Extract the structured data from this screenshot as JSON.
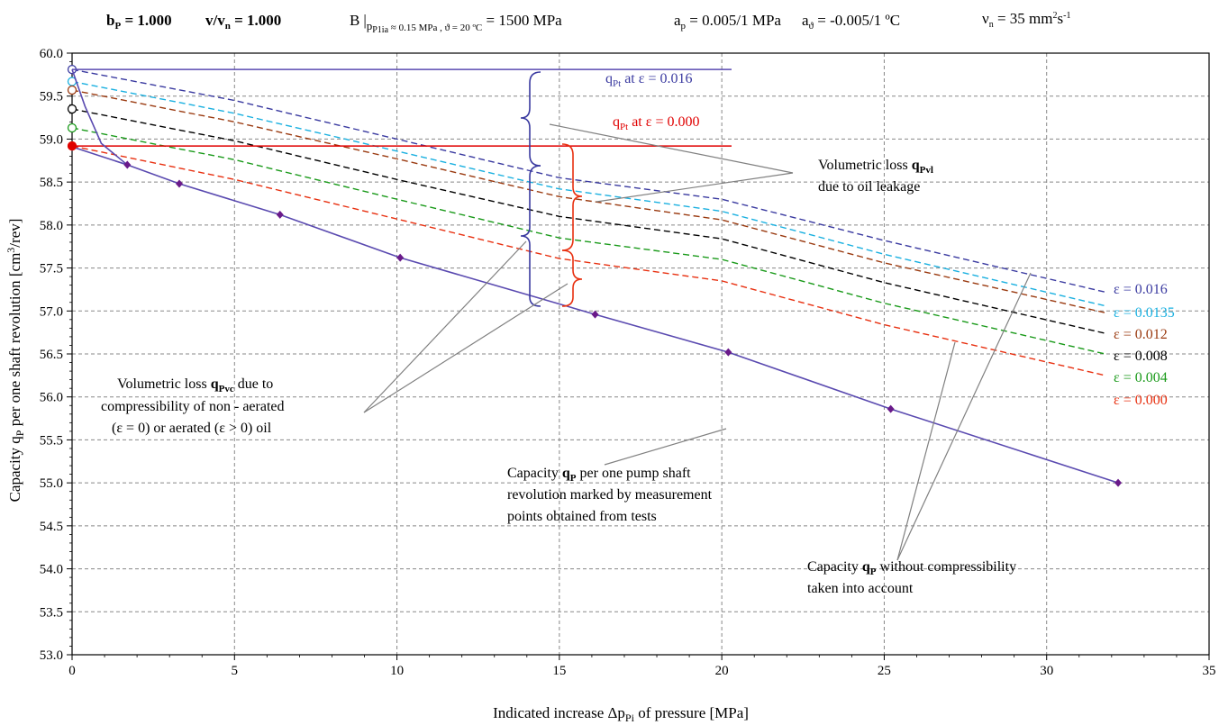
{
  "header": {
    "bp_label": "b",
    "bp_sub": "P",
    "bp_val": " = 1.000",
    "vvn_label": "v/v",
    "vvn_sub": "n",
    "vvn_val": " = 1.000",
    "B_label": "B",
    "B_sub": "p",
    "B_subsub": "P1ia",
    "B_cond": " ≈ 0.15 MPa , ϑ = 20 ºC",
    "B_val": " = 1500 MPa",
    "ap_label": "a",
    "ap_sub": "p",
    "ap_val": " = 0.005/1 MPa",
    "at_label": "a",
    "at_sub": "ϑ",
    "at_val": " = -0.005/1 ºC",
    "nu_label": "ν",
    "nu_sub": "n",
    "nu_val": " = 35 mm",
    "nu_sup1": "2",
    "nu_mid": "s",
    "nu_sup2": "-1"
  },
  "annotations": {
    "qpt016_q": "q",
    "qpt016_sub": "Pt",
    "qpt016_rest": "  at  ε = 0.016",
    "qpt000_q": "q",
    "qpt000_sub": "Pt",
    "qpt000_rest": "  at  ε = 0.000",
    "vl_leak_1a": "Volumetric loss ",
    "vl_leak_1b": "q",
    "vl_leak_1c": "Pvl",
    "vl_leak_2": "due to oil leakage",
    "vl_comp_1a": "Volumetric loss  ",
    "vl_comp_1b": "q",
    "vl_comp_1c": "Pvc",
    "vl_comp_1d": " due to",
    "vl_comp_2": "compressibility of  non - aerated",
    "vl_comp_3": "(ε = 0) or aerated (ε > 0) oil",
    "cap_meas_1a": "Capacity ",
    "cap_meas_1b": "q",
    "cap_meas_1c": "P",
    "cap_meas_1d": "  per one pump shaft",
    "cap_meas_2": "revolution marked by measurement",
    "cap_meas_3": "points obtained from tests",
    "cap_nc_1a": "Capacity ",
    "cap_nc_1b": "q",
    "cap_nc_1c": "P",
    "cap_nc_1d": "  without compressibility",
    "cap_nc_2": "taken into account"
  },
  "colors": {
    "eps016": "#3a3aa0",
    "eps0135": "#1ab0e0",
    "eps012": "#9a3a10",
    "eps008": "#000000",
    "eps004": "#1a9a1a",
    "eps000": "#e83010",
    "measured_line": "#5a4ab0",
    "measured_point": "#6a1a8a",
    "red_line": "#e00000",
    "grid": "#888888",
    "leader": "#808080"
  },
  "chart_data": {
    "type": "line",
    "xlabel_a": "Indicated increase Δp",
    "xlabel_sub": "Pi",
    "xlabel_b": " of pressure  [MPa]",
    "ylabel_a": "Capacity q",
    "ylabel_sub": "P",
    "ylabel_b": " per one  shaft  revolution   [cm",
    "ylabel_sup": "3",
    "ylabel_c": "/rev]",
    "xlim": [
      0,
      35
    ],
    "ylim": [
      53.0,
      60.0
    ],
    "x_ticks": [
      "0",
      "5",
      "10",
      "15",
      "20",
      "25",
      "30",
      "35"
    ],
    "y_ticks": [
      "53.0",
      "53.5",
      "54.0",
      "54.5",
      "55.0",
      "55.5",
      "56.0",
      "56.5",
      "57.0",
      "57.5",
      "58.0",
      "58.5",
      "59.0",
      "59.5",
      "60.0"
    ],
    "grid": true,
    "measured": {
      "x": [
        0,
        1.7,
        3.3,
        6.4,
        10.1,
        16.1,
        20.2,
        25.2,
        32.2
      ],
      "y": [
        58.91,
        58.7,
        58.48,
        58.12,
        57.62,
        56.96,
        56.52,
        55.86,
        55.0
      ]
    },
    "steep_curve": {
      "x": [
        0,
        0.4,
        0.9,
        1.7
      ],
      "y": [
        59.81,
        59.38,
        58.95,
        58.7
      ]
    },
    "qpt_lines": [
      {
        "label_ref": "ε = 0.016",
        "y": 59.81,
        "x_end": 20.3
      },
      {
        "label_ref": "ε = 0.000",
        "y": 58.92,
        "x_end": 20.3
      }
    ],
    "series": [
      {
        "name": "ε = 0.016",
        "x": [
          0,
          5,
          10,
          15,
          20,
          25,
          31.8
        ],
        "y": [
          59.81,
          59.45,
          59.0,
          58.55,
          58.3,
          57.82,
          57.22
        ]
      },
      {
        "name": "ε = 0.0135",
        "x": [
          0,
          5,
          10,
          15,
          20,
          25,
          31.8
        ],
        "y": [
          59.67,
          59.3,
          58.86,
          58.42,
          58.16,
          57.66,
          57.06
        ]
      },
      {
        "name": "ε = 0.012",
        "x": [
          0,
          5,
          10,
          15,
          20,
          25,
          31.8
        ],
        "y": [
          59.57,
          59.2,
          58.77,
          58.33,
          58.06,
          57.56,
          56.98
        ]
      },
      {
        "name": "ε = 0.008",
        "x": [
          0,
          5,
          10,
          15,
          20,
          25,
          31.8
        ],
        "y": [
          59.35,
          58.98,
          58.53,
          58.1,
          57.84,
          57.33,
          56.74
        ]
      },
      {
        "name": "ε = 0.004",
        "x": [
          0,
          5,
          10,
          15,
          20,
          25,
          31.8
        ],
        "y": [
          59.13,
          58.76,
          58.3,
          57.85,
          57.6,
          57.09,
          56.5
        ]
      },
      {
        "name": "ε = 0.000",
        "x": [
          0,
          5,
          10,
          15,
          20,
          25,
          31.8
        ],
        "y": [
          58.92,
          58.53,
          58.07,
          57.61,
          57.35,
          56.84,
          56.25
        ]
      }
    ],
    "eps_labels": [
      "ε = 0.016",
      "ε = 0.0135",
      "ε = 0.012",
      "ε = 0.008",
      "ε = 0.004",
      "ε = 0.000"
    ]
  }
}
